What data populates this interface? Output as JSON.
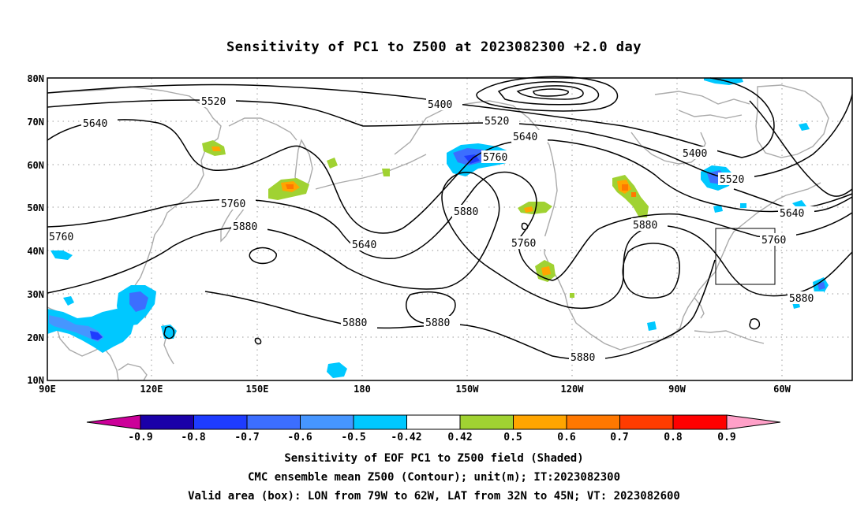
{
  "title": "Sensitivity of PC1 to Z500 at 2023082300 +2.0 day",
  "axes": {
    "lat_labels": [
      "80N",
      "70N",
      "60N",
      "50N",
      "40N",
      "30N",
      "20N",
      "10N"
    ],
    "lon_labels": [
      "90E",
      "120E",
      "150E",
      "180",
      "150W",
      "120W",
      "90W",
      "60W"
    ]
  },
  "contour_labels": {
    "c5520a": "5520",
    "c5400a": "5400",
    "c5640a": "5640",
    "c5520b": "5520",
    "c5640b": "5640",
    "c5760a": "5760",
    "c5400b": "5400",
    "c5760b": "5760",
    "c5520c": "5520",
    "c5880a": "5880",
    "c5880b": "5880",
    "c5640c": "5640",
    "c5640d": "5640",
    "c5760c": "5760",
    "c5760d": "5760",
    "c5880c": "5880",
    "c5880d": "5880",
    "c5880e": "5880",
    "c5880f": "5880",
    "c5880g": "5880"
  },
  "colorbar": {
    "labels": [
      "-0.9",
      "-0.8",
      "-0.7",
      "-0.6",
      "-0.5",
      "-0.42",
      "0.42",
      "0.5",
      "0.6",
      "0.7",
      "0.8",
      "0.9"
    ],
    "colors": [
      "#1a00a8",
      "#1e3cff",
      "#3c6eff",
      "#4696ff",
      "#00c8ff",
      "#ffffff",
      "#a0d232",
      "#ffa500",
      "#ff7800",
      "#ff3c00",
      "#ff0000"
    ],
    "low_end_color": "#cc0099",
    "high_end_color": "#ffa0c8"
  },
  "captions": {
    "line1": "Sensitivity of EOF PC1 to Z500 field (Shaded)",
    "line2": "CMC ensemble mean Z500 (Contour); unit(m); IT:2023082300",
    "line3": "Valid area (box): LON from 79W to 62W, LAT from 32N to 45N; VT: 2023082600"
  }
}
